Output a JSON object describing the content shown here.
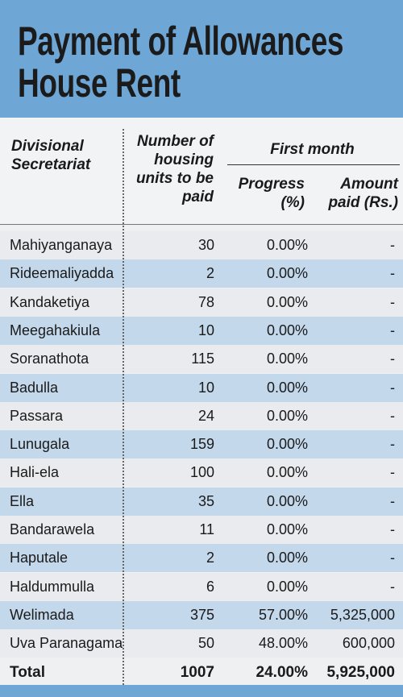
{
  "header": {
    "title": [
      "Payment of Allowances",
      "House Rent"
    ]
  },
  "table": {
    "columns": {
      "secretariat": "Divisional Secretariat",
      "units": "Number of housing units to be paid",
      "group": "First month",
      "progress": "Progress (%)",
      "amount": "Amount paid (Rs.)"
    },
    "rows": [
      [
        "Mahiyanganaya",
        "30",
        "0.00%",
        "-"
      ],
      [
        "Rideemaliyadda",
        "2",
        "0.00%",
        "-"
      ],
      [
        "Kandaketiya",
        "78",
        "0.00%",
        "-"
      ],
      [
        "Meegahakiula",
        "10",
        "0.00%",
        "-"
      ],
      [
        "Soranathota",
        "115",
        "0.00%",
        "-"
      ],
      [
        "Badulla",
        "10",
        "0.00%",
        "-"
      ],
      [
        "Passara",
        "24",
        "0.00%",
        "-"
      ],
      [
        "Lunugala",
        "159",
        "0.00%",
        "-"
      ],
      [
        "Hali-ela",
        "100",
        "0.00%",
        "-"
      ],
      [
        "Ella",
        "35",
        "0.00%",
        "-"
      ],
      [
        "Bandarawela",
        "11",
        "0.00%",
        "-"
      ],
      [
        "Haputale",
        "2",
        "0.00%",
        "-"
      ],
      [
        "Haldummulla",
        "6",
        "0.00%",
        "-"
      ],
      [
        "Welimada",
        "375",
        "57.00%",
        "5,325,000"
      ],
      [
        "Uva Paranagama",
        "50",
        "48.00%",
        "600,000"
      ]
    ],
    "total": [
      "Total",
      "1007",
      "24.00%",
      "5,925,000"
    ]
  }
}
